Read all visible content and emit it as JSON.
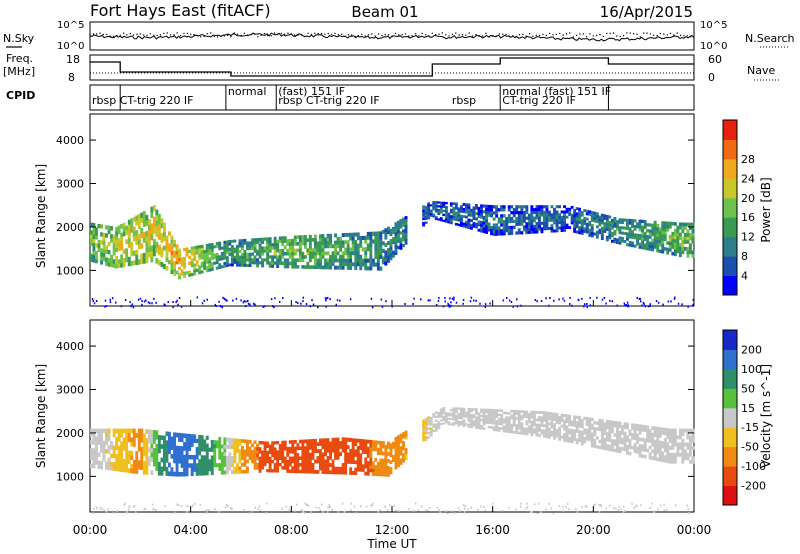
{
  "header": {
    "station": "Fort Hays East (fitACF)",
    "beam": "Beam 01",
    "date": "16/Apr/2015"
  },
  "strip_labels": {
    "n_sky": "N.Sky",
    "n_search": "N.Search",
    "freq": "Freq.",
    "freq_unit": "[MHz]",
    "nave": "Nave",
    "cpid": "CPID",
    "noise_top": "10^5",
    "noise_bottom": "10^0",
    "freq_top": "18",
    "freq_bottom": "8",
    "nave_top": "60",
    "nave_bottom": "0"
  },
  "cpid_segments": [
    {
      "label": "rbsp  CT-trig 220 IF",
      "start_h": 0.0,
      "end_h": 5.4,
      "row": 1
    },
    {
      "label": "normal",
      "start_h": 5.4,
      "end_h": 7.4,
      "row": 0
    },
    {
      "label": "(fast) 151 IF",
      "start_h": 7.4,
      "end_h": 12.5,
      "row": 0
    },
    {
      "label": "rbsp CT-trig 220 IF",
      "start_h": 7.4,
      "end_h": 12.5,
      "row": 1
    },
    {
      "label": "rbsp",
      "start_h": 14.3,
      "end_h": 16.3,
      "row": 1
    },
    {
      "label": "normal (fast) 151 IF",
      "start_h": 16.3,
      "end_h": 21.7,
      "row": 0
    },
    {
      "label": "CT-trig 220 IF",
      "start_h": 16.3,
      "end_h": 21.7,
      "row": 1
    }
  ],
  "power_colorbar": {
    "label": "Power [dB]",
    "ticks": [
      "4",
      "8",
      "12",
      "16",
      "20",
      "24",
      "28"
    ],
    "colors": [
      "#0000ff",
      "#1d4fb0",
      "#2a7f8a",
      "#3a9a52",
      "#6cc24a",
      "#c7c92a",
      "#f0a81e",
      "#f06a12",
      "#e82010"
    ]
  },
  "velocity_colorbar": {
    "label": "Velocity [m s^-1]",
    "ticks": [
      "200",
      "100",
      "50",
      "15",
      "-15",
      "-50",
      "-100",
      "-200"
    ],
    "colors": [
      "#1a28c8",
      "#2f6fd0",
      "#2f8f6a",
      "#57c03c",
      "#c8c8c8",
      "#f0c020",
      "#f08a10",
      "#e84a10",
      "#e01010"
    ]
  },
  "chart_data": {
    "type": "heatmap",
    "title": "Fort Hays East (fitACF)  Beam 01  16/Apr/2015",
    "xlabel": "Time UT",
    "ylabel": "Slant Range [km]",
    "xlim_hours": [
      0,
      24
    ],
    "ylim_km": [
      180,
      4600
    ],
    "x_ticks": [
      "00:00",
      "04:00",
      "08:00",
      "12:00",
      "16:00",
      "20:00",
      "00:00"
    ],
    "y_ticks": [
      "1000",
      "2000",
      "3000",
      "4000"
    ],
    "power_echo_band": [
      {
        "t": 0.0,
        "lo": 1200,
        "hi": 2100,
        "power_db": 16
      },
      {
        "t": 1.0,
        "lo": 1050,
        "hi": 2000,
        "power_db": 20
      },
      {
        "t": 2.5,
        "lo": 1200,
        "hi": 2500,
        "power_db": 20
      },
      {
        "t": 3.5,
        "lo": 800,
        "hi": 1500,
        "power_db": 24
      },
      {
        "t": 5.5,
        "lo": 1100,
        "hi": 1700,
        "power_db": 12
      },
      {
        "t": 8.0,
        "lo": 1050,
        "hi": 1800,
        "power_db": 16
      },
      {
        "t": 11.5,
        "lo": 1000,
        "hi": 1900,
        "power_db": 12
      },
      {
        "t": 13.5,
        "lo": 2200,
        "hi": 2600,
        "power_db": 8
      },
      {
        "t": 16.0,
        "lo": 1800,
        "hi": 2500,
        "power_db": 8
      },
      {
        "t": 19.0,
        "lo": 1900,
        "hi": 2500,
        "power_db": 8
      },
      {
        "t": 21.0,
        "lo": 1600,
        "hi": 2200,
        "power_db": 12
      },
      {
        "t": 23.5,
        "lo": 1300,
        "hi": 2100,
        "power_db": 16
      }
    ],
    "velocity_echo_band": [
      {
        "t": 0.0,
        "lo": 1200,
        "hi": 2100,
        "velocity": 0
      },
      {
        "t": 2.0,
        "lo": 1050,
        "hi": 2100,
        "velocity": -40
      },
      {
        "t": 3.5,
        "lo": 1000,
        "hi": 2000,
        "velocity": 120
      },
      {
        "t": 7.0,
        "lo": 1100,
        "hi": 1800,
        "velocity": -100
      },
      {
        "t": 10.0,
        "lo": 1050,
        "hi": 1900,
        "velocity": -120
      },
      {
        "t": 11.8,
        "lo": 1000,
        "hi": 1800,
        "velocity": -50
      },
      {
        "t": 14.0,
        "lo": 2200,
        "hi": 2600,
        "velocity": 0
      },
      {
        "t": 18.0,
        "lo": 1900,
        "hi": 2500,
        "velocity": 0
      },
      {
        "t": 23.0,
        "lo": 1300,
        "hi": 2100,
        "velocity": 0
      }
    ]
  }
}
